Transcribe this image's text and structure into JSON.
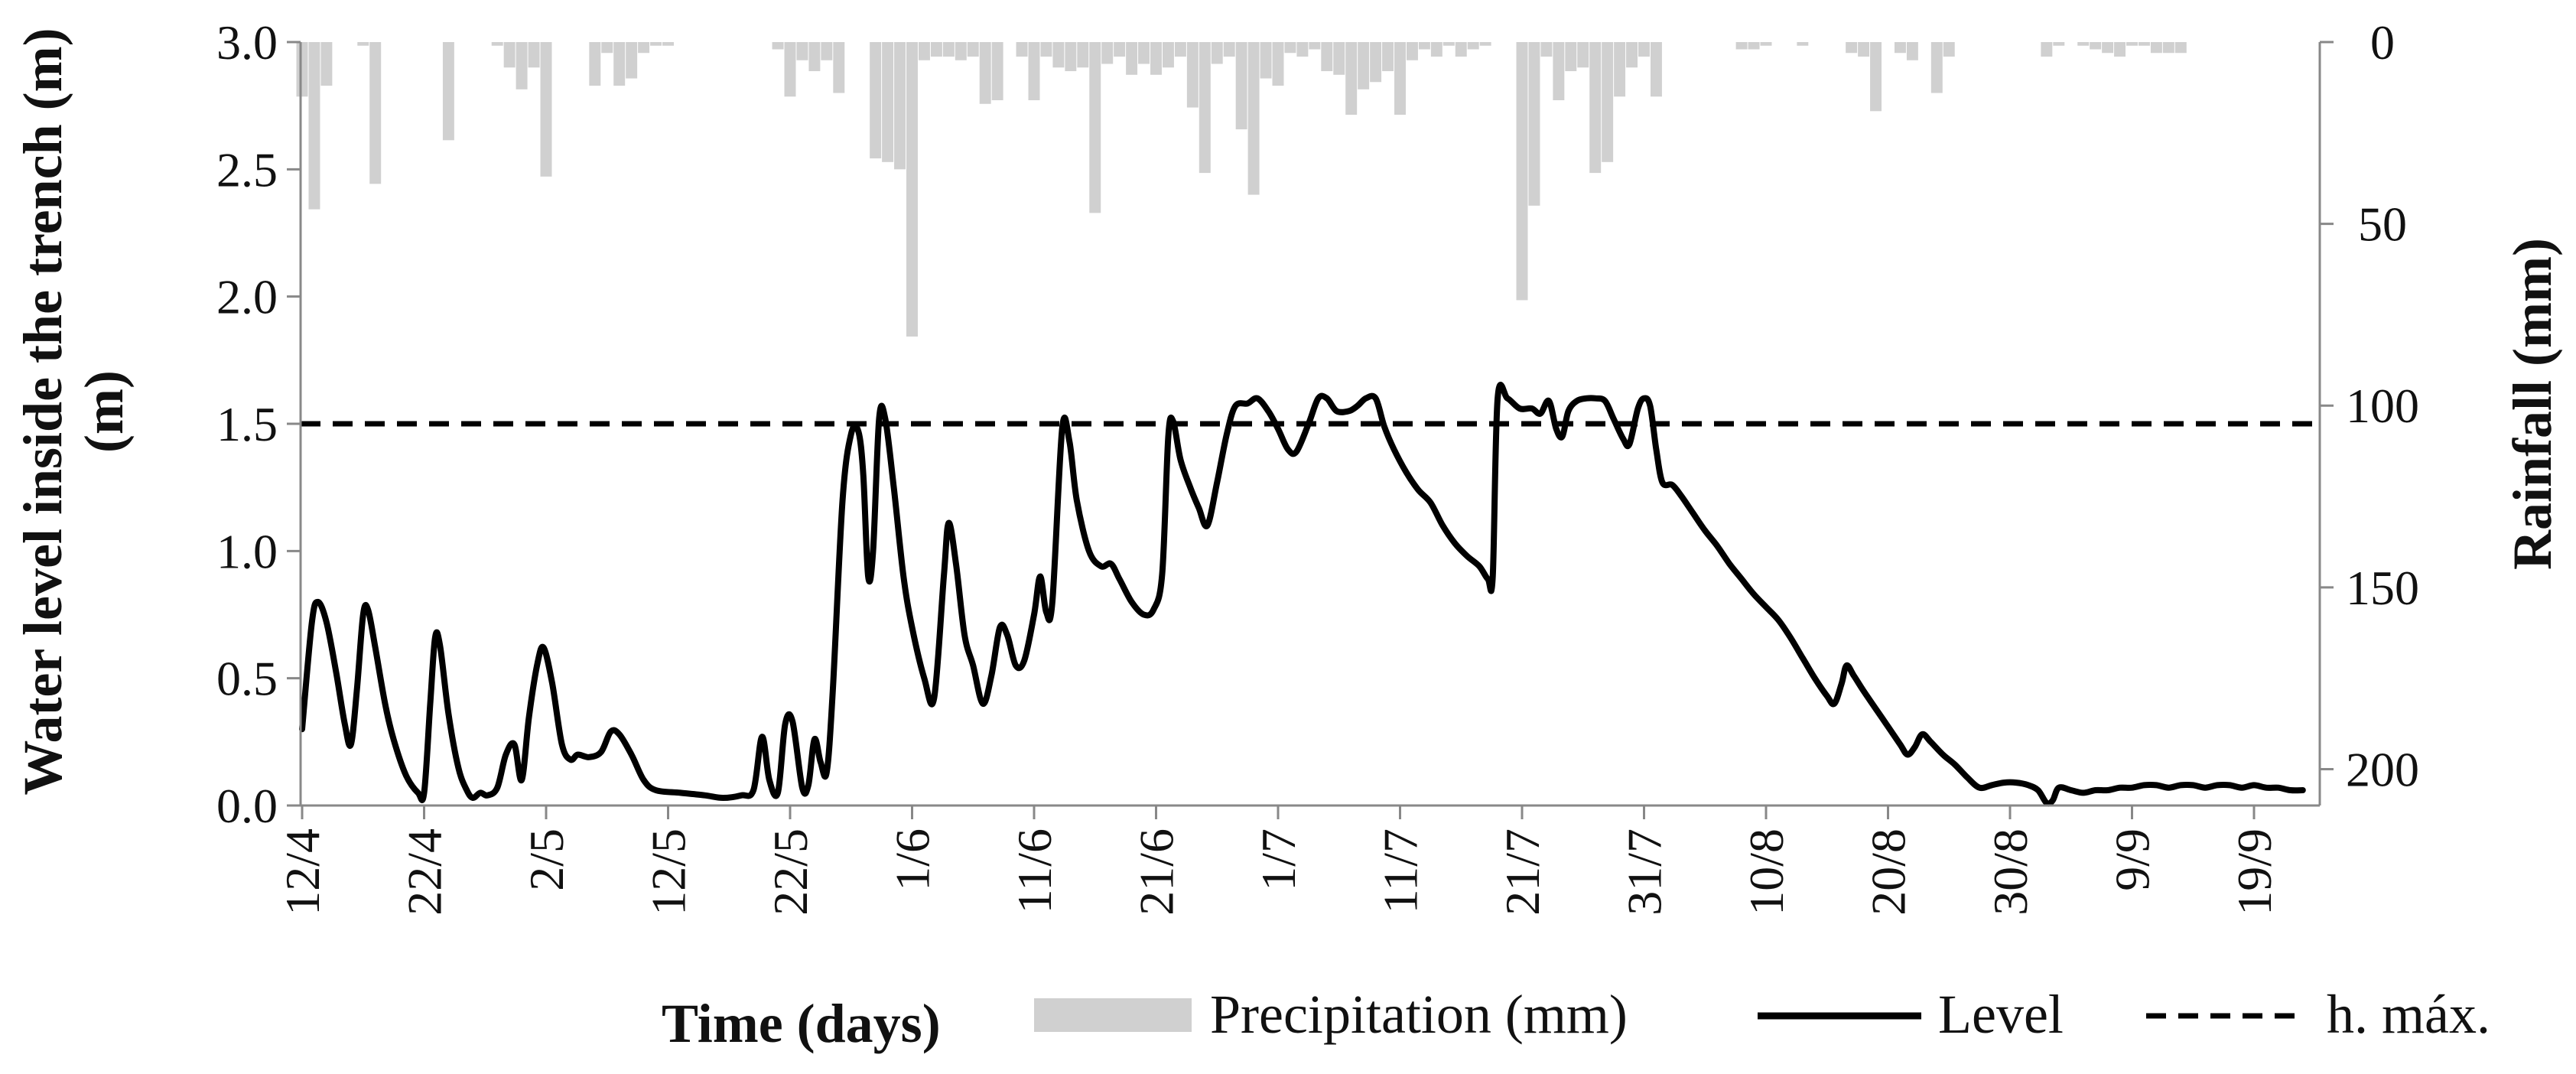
{
  "chart_data": {
    "type": "line",
    "title": "",
    "xlabel": "Time (days)",
    "ylabel": "Water level inside the trench (m)",
    "y2label": "Rainfall (mm)",
    "x_start": 0,
    "x_end": 164,
    "ylim": [
      0,
      3.0
    ],
    "y2lim": [
      0,
      210
    ],
    "y2_inverted": true,
    "x_ticks": [
      {
        "label": "12/4",
        "day": 0
      },
      {
        "label": "22/4",
        "day": 10
      },
      {
        "label": "2/5",
        "day": 20
      },
      {
        "label": "12/5",
        "day": 30
      },
      {
        "label": "22/5",
        "day": 40
      },
      {
        "label": "1/6",
        "day": 50
      },
      {
        "label": "11/6",
        "day": 60
      },
      {
        "label": "21/6",
        "day": 70
      },
      {
        "label": "1/7",
        "day": 80
      },
      {
        "label": "11/7",
        "day": 90
      },
      {
        "label": "21/7",
        "day": 100
      },
      {
        "label": "31/7",
        "day": 110
      },
      {
        "label": "10/8",
        "day": 120
      },
      {
        "label": "20/8",
        "day": 130
      },
      {
        "label": "30/8",
        "day": 140
      },
      {
        "label": "9/9",
        "day": 150
      },
      {
        "label": "19/9",
        "day": 160
      }
    ],
    "y_ticks": [
      {
        "label": "0.0",
        "value": 0
      },
      {
        "label": "0.5",
        "value": 0.5
      },
      {
        "label": "1.0",
        "value": 1.0
      },
      {
        "label": "1.5",
        "value": 1.5
      },
      {
        "label": "2.0",
        "value": 2.0
      },
      {
        "label": "2.5",
        "value": 2.5
      },
      {
        "label": "3.0",
        "value": 3.0
      }
    ],
    "y2_ticks": [
      {
        "label": "0",
        "value": 0
      },
      {
        "label": "50",
        "value": 50
      },
      {
        "label": "100",
        "value": 100
      },
      {
        "label": "150",
        "value": 150
      },
      {
        "label": "200",
        "value": 200
      }
    ],
    "series": [
      {
        "name": "Precipitation (mm)",
        "kind": "bar",
        "color": "#d0d0d0",
        "values": [
          15,
          46,
          12,
          0,
          0,
          1,
          39,
          0,
          0,
          0,
          0,
          0,
          27,
          0,
          0,
          0,
          1,
          7,
          13,
          7,
          37,
          0,
          0,
          0,
          12,
          3,
          12,
          10,
          3,
          1,
          1,
          0,
          0,
          0,
          0,
          0,
          0,
          0,
          0,
          2,
          15,
          5,
          8,
          5,
          14,
          0,
          0,
          32,
          33,
          35,
          81,
          5,
          4,
          4,
          5,
          4,
          17,
          16,
          0,
          4,
          16,
          4,
          7,
          8,
          7,
          47,
          6,
          4,
          9,
          6,
          9,
          7,
          4,
          18,
          36,
          6,
          4,
          24,
          42,
          10,
          12,
          3,
          4,
          2,
          8,
          9,
          20,
          13,
          11,
          8,
          20,
          5,
          2,
          4,
          1,
          4,
          2,
          1,
          0,
          0,
          71,
          45,
          4,
          16,
          8,
          7,
          36,
          33,
          15,
          7,
          4,
          15,
          0,
          0,
          0,
          0,
          0,
          0,
          2,
          2,
          1,
          0,
          0,
          1,
          0,
          0,
          0,
          3,
          4,
          19,
          0,
          3,
          5,
          0,
          14,
          4,
          0,
          0,
          0,
          0,
          0,
          0,
          0,
          4,
          1,
          0,
          1,
          2,
          3,
          4,
          1,
          1,
          3,
          3,
          3,
          0,
          0,
          0,
          0,
          0,
          0,
          0,
          0,
          0,
          0
        ]
      },
      {
        "name": "Level",
        "kind": "line",
        "color": "#000000",
        "points": [
          [
            0,
            0.3
          ],
          [
            0.8,
            0.72
          ],
          [
            1.3,
            0.8
          ],
          [
            2,
            0.72
          ],
          [
            2.8,
            0.52
          ],
          [
            3.5,
            0.32
          ],
          [
            4,
            0.24
          ],
          [
            4.5,
            0.46
          ],
          [
            5,
            0.75
          ],
          [
            5.4,
            0.77
          ],
          [
            6,
            0.62
          ],
          [
            6.8,
            0.4
          ],
          [
            7.5,
            0.26
          ],
          [
            8.5,
            0.12
          ],
          [
            9.5,
            0.05
          ],
          [
            10,
            0.05
          ],
          [
            10.5,
            0.4
          ],
          [
            10.9,
            0.66
          ],
          [
            11.3,
            0.63
          ],
          [
            12,
            0.36
          ],
          [
            12.8,
            0.15
          ],
          [
            13.5,
            0.06
          ],
          [
            14,
            0.03
          ],
          [
            14.6,
            0.05
          ],
          [
            15.2,
            0.04
          ],
          [
            16,
            0.07
          ],
          [
            16.7,
            0.2
          ],
          [
            17.4,
            0.24
          ],
          [
            18,
            0.1
          ],
          [
            18.6,
            0.35
          ],
          [
            19.3,
            0.56
          ],
          [
            19.8,
            0.62
          ],
          [
            20.5,
            0.48
          ],
          [
            21.3,
            0.24
          ],
          [
            22,
            0.18
          ],
          [
            22.6,
            0.2
          ],
          [
            23.5,
            0.19
          ],
          [
            24.5,
            0.21
          ],
          [
            25.3,
            0.29
          ],
          [
            26,
            0.28
          ],
          [
            27,
            0.2
          ],
          [
            28,
            0.1
          ],
          [
            29,
            0.06
          ],
          [
            31,
            0.05
          ],
          [
            33,
            0.04
          ],
          [
            34.5,
            0.03
          ],
          [
            36,
            0.04
          ],
          [
            37,
            0.06
          ],
          [
            37.7,
            0.27
          ],
          [
            38.3,
            0.1
          ],
          [
            39,
            0.05
          ],
          [
            39.6,
            0.32
          ],
          [
            40.2,
            0.33
          ],
          [
            41,
            0.07
          ],
          [
            41.5,
            0.08
          ],
          [
            42,
            0.26
          ],
          [
            42.5,
            0.17
          ],
          [
            43,
            0.13
          ],
          [
            43.5,
            0.45
          ],
          [
            44.3,
            1.2
          ],
          [
            45,
            1.46
          ],
          [
            45.6,
            1.47
          ],
          [
            46,
            1.3
          ],
          [
            46.4,
            0.9
          ],
          [
            46.8,
            1.0
          ],
          [
            47.3,
            1.52
          ],
          [
            47.8,
            1.52
          ],
          [
            48.5,
            1.25
          ],
          [
            49.3,
            0.9
          ],
          [
            50,
            0.7
          ],
          [
            51,
            0.5
          ],
          [
            51.8,
            0.42
          ],
          [
            52.6,
            0.9
          ],
          [
            53,
            1.11
          ],
          [
            53.6,
            0.95
          ],
          [
            54.3,
            0.67
          ],
          [
            55,
            0.55
          ],
          [
            55.8,
            0.4
          ],
          [
            56.5,
            0.51
          ],
          [
            57.2,
            0.7
          ],
          [
            57.8,
            0.67
          ],
          [
            58.5,
            0.55
          ],
          [
            59.2,
            0.57
          ],
          [
            60,
            0.75
          ],
          [
            60.5,
            0.9
          ],
          [
            61,
            0.76
          ],
          [
            61.5,
            0.8
          ],
          [
            62.3,
            1.48
          ],
          [
            62.9,
            1.43
          ],
          [
            63.5,
            1.2
          ],
          [
            64.5,
            1.0
          ],
          [
            65.5,
            0.94
          ],
          [
            66.3,
            0.95
          ],
          [
            67,
            0.89
          ],
          [
            68,
            0.8
          ],
          [
            69,
            0.75
          ],
          [
            69.8,
            0.77
          ],
          [
            70.5,
            0.91
          ],
          [
            71,
            1.45
          ],
          [
            71.4,
            1.51
          ],
          [
            72,
            1.36
          ],
          [
            72.8,
            1.25
          ],
          [
            73.5,
            1.17
          ],
          [
            74.2,
            1.1
          ],
          [
            75,
            1.27
          ],
          [
            75.8,
            1.46
          ],
          [
            76.5,
            1.57
          ],
          [
            77.5,
            1.58
          ],
          [
            78.3,
            1.6
          ],
          [
            79.2,
            1.55
          ],
          [
            80,
            1.48
          ],
          [
            80.8,
            1.4
          ],
          [
            81.5,
            1.39
          ],
          [
            82.5,
            1.5
          ],
          [
            83.3,
            1.6
          ],
          [
            84,
            1.6
          ],
          [
            84.8,
            1.55
          ],
          [
            85.8,
            1.55
          ],
          [
            86.5,
            1.57
          ],
          [
            87.2,
            1.6
          ],
          [
            88,
            1.6
          ],
          [
            88.7,
            1.49
          ],
          [
            89.5,
            1.4
          ],
          [
            90.5,
            1.31
          ],
          [
            91.5,
            1.24
          ],
          [
            92.5,
            1.19
          ],
          [
            93.5,
            1.1
          ],
          [
            94.5,
            1.03
          ],
          [
            95.5,
            0.98
          ],
          [
            96.5,
            0.94
          ],
          [
            97.2,
            0.89
          ],
          [
            97.6,
            0.9
          ],
          [
            98,
            1.6
          ],
          [
            98.8,
            1.6
          ],
          [
            99.8,
            1.56
          ],
          [
            100.8,
            1.56
          ],
          [
            101.5,
            1.54
          ],
          [
            102.2,
            1.59
          ],
          [
            102.8,
            1.48
          ],
          [
            103.3,
            1.45
          ],
          [
            103.8,
            1.55
          ],
          [
            104.5,
            1.59
          ],
          [
            105.3,
            1.6
          ],
          [
            106,
            1.6
          ],
          [
            106.8,
            1.59
          ],
          [
            107.5,
            1.52
          ],
          [
            108.3,
            1.44
          ],
          [
            108.8,
            1.42
          ],
          [
            109.5,
            1.56
          ],
          [
            110,
            1.6
          ],
          [
            110.5,
            1.57
          ],
          [
            111,
            1.4
          ],
          [
            111.5,
            1.27
          ],
          [
            112.3,
            1.26
          ],
          [
            113,
            1.22
          ],
          [
            114,
            1.15
          ],
          [
            115,
            1.08
          ],
          [
            116,
            1.02
          ],
          [
            117,
            0.95
          ],
          [
            118,
            0.89
          ],
          [
            119,
            0.83
          ],
          [
            120,
            0.78
          ],
          [
            121,
            0.73
          ],
          [
            122,
            0.66
          ],
          [
            123,
            0.58
          ],
          [
            124,
            0.5
          ],
          [
            125,
            0.43
          ],
          [
            125.6,
            0.4
          ],
          [
            126.2,
            0.48
          ],
          [
            126.6,
            0.55
          ],
          [
            127.2,
            0.51
          ],
          [
            128,
            0.45
          ],
          [
            129,
            0.38
          ],
          [
            130,
            0.31
          ],
          [
            131,
            0.24
          ],
          [
            131.6,
            0.2
          ],
          [
            132.2,
            0.23
          ],
          [
            132.8,
            0.28
          ],
          [
            133.5,
            0.25
          ],
          [
            134.5,
            0.2
          ],
          [
            135.5,
            0.16
          ],
          [
            136.5,
            0.11
          ],
          [
            137.5,
            0.07
          ],
          [
            138.5,
            0.08
          ],
          [
            139.5,
            0.09
          ],
          [
            140.5,
            0.09
          ],
          [
            141.5,
            0.08
          ],
          [
            142.3,
            0.06
          ],
          [
            143,
            0.01
          ],
          [
            143.5,
            0.02
          ],
          [
            144,
            0.07
          ],
          [
            145,
            0.06
          ],
          [
            146,
            0.05
          ],
          [
            147,
            0.06
          ],
          [
            148,
            0.06
          ],
          [
            149,
            0.07
          ],
          [
            150,
            0.07
          ],
          [
            151,
            0.08
          ],
          [
            152,
            0.08
          ],
          [
            153,
            0.07
          ],
          [
            154,
            0.08
          ],
          [
            155,
            0.08
          ],
          [
            156,
            0.07
          ],
          [
            157,
            0.08
          ],
          [
            158,
            0.08
          ],
          [
            159,
            0.07
          ],
          [
            160,
            0.08
          ],
          [
            161,
            0.07
          ],
          [
            162,
            0.07
          ],
          [
            163,
            0.06
          ],
          [
            164,
            0.06
          ]
        ]
      },
      {
        "name": "h. máx.",
        "kind": "dashed",
        "color": "#000000",
        "value": 1.5
      }
    ],
    "legend": {
      "position": "bottom",
      "title": "Time (days)",
      "items": [
        "Precipitation (mm)",
        "Level",
        "h. máx."
      ]
    }
  }
}
